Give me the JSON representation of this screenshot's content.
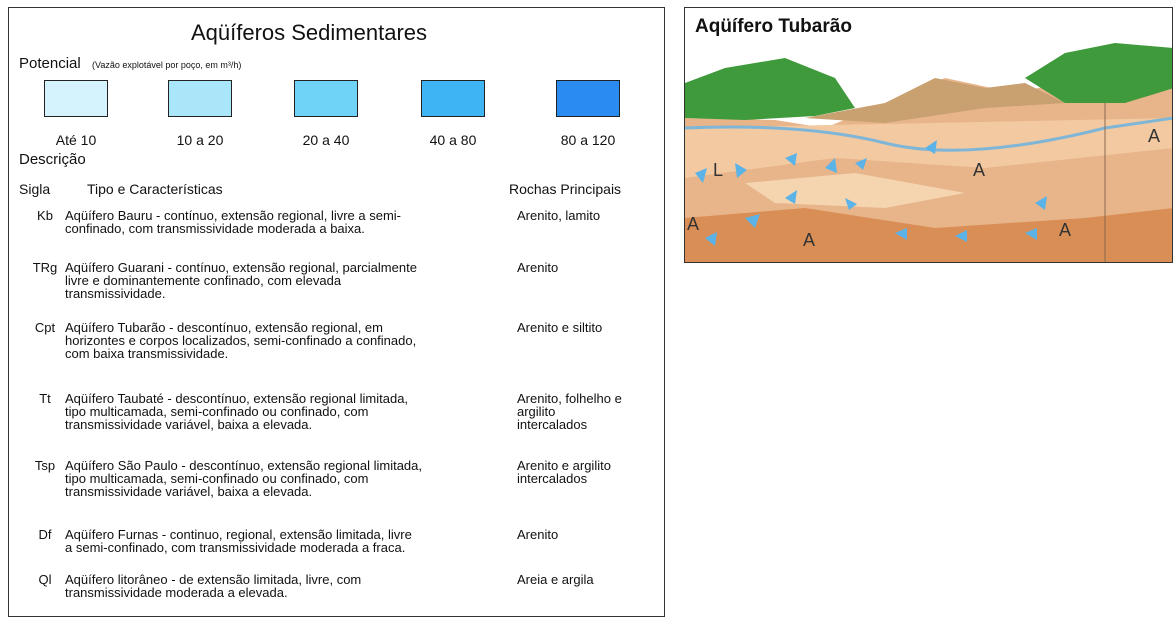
{
  "left_panel": {
    "title": "Aqüíferos Sedimentares",
    "potential_label": "Potencial",
    "potential_note": "(Vazão explotável por poço, em m³/h)",
    "classes": [
      {
        "label": "Até 10",
        "color": "#d4f3fc"
      },
      {
        "label": "10 a 20",
        "color": "#a9e6f9"
      },
      {
        "label": "20 a 40",
        "color": "#6fd3f8"
      },
      {
        "label": "40 a 80",
        "color": "#3fb4f4"
      },
      {
        "label": "80 a 120",
        "color": "#2a8cf0"
      }
    ],
    "description_heading": "Descrição",
    "headers": [
      "Sigla",
      "Tipo e Características",
      "Rochas Principais"
    ],
    "rows": [
      {
        "sigla": "Kb",
        "description": [
          "Aqüífero Bauru - contínuo,  extensão regional, livre a semi-",
          "confinado, com transmissividade moderada a baixa."
        ],
        "rocks": [
          "Arenito, lamito"
        ]
      },
      {
        "sigla": "TRg",
        "description": [
          "Aqüífero Guarani - contínuo,  extensão regional, parcialmente",
          "livre e dominantemente confinado, com elevada",
          "transmissividade."
        ],
        "rocks": [
          "Arenito"
        ]
      },
      {
        "sigla": "Cpt",
        "description": [
          "Aqüífero Tubarão - descontínuo,  extensão regional, em",
          "horizontes e corpos localizados, semi-confinado a confinado,",
          "com baixa transmissividade."
        ],
        "rocks": [
          "Arenito e siltito"
        ]
      },
      {
        "sigla": "Tt",
        "description": [
          "Aqüífero Taubaté - descontínuo,  extensão regional limitada,",
          "tipo multicamada, semi-confinado ou confinado, com",
          "transmissividade variável, baixa a elevada."
        ],
        "rocks": [
          "Arenito, folhelho e",
          "argilito",
          "intercalados"
        ]
      },
      {
        "sigla": "Tsp",
        "description": [
          "Aqüífero São Paulo - descontínuo,  extensão regional limitada,",
          "tipo multicamada, semi-confinado ou confinado, com",
          "transmissividade variável, baixa a elevada."
        ],
        "rocks": [
          "Arenito e  argilito",
          "intercalados"
        ]
      },
      {
        "sigla": "Df",
        "description": [
          "Aqüífero Furnas - continuo, regional,  extensão limitada, livre",
          "a semi-confinado, com transmissividade moderada a fraca."
        ],
        "rocks": [
          "Arenito"
        ]
      },
      {
        "sigla": "Ql",
        "description": [
          "Aqüífero litorâneo - de extensão limitada, livre, com",
          "transmissividade moderada a elevada."
        ],
        "rocks": [
          "Areia e argila"
        ]
      }
    ]
  },
  "right_panel": {
    "title": "Aqüífero Tubarão",
    "labels": [
      "L",
      "A",
      "A",
      "A",
      "A",
      "A"
    ]
  }
}
